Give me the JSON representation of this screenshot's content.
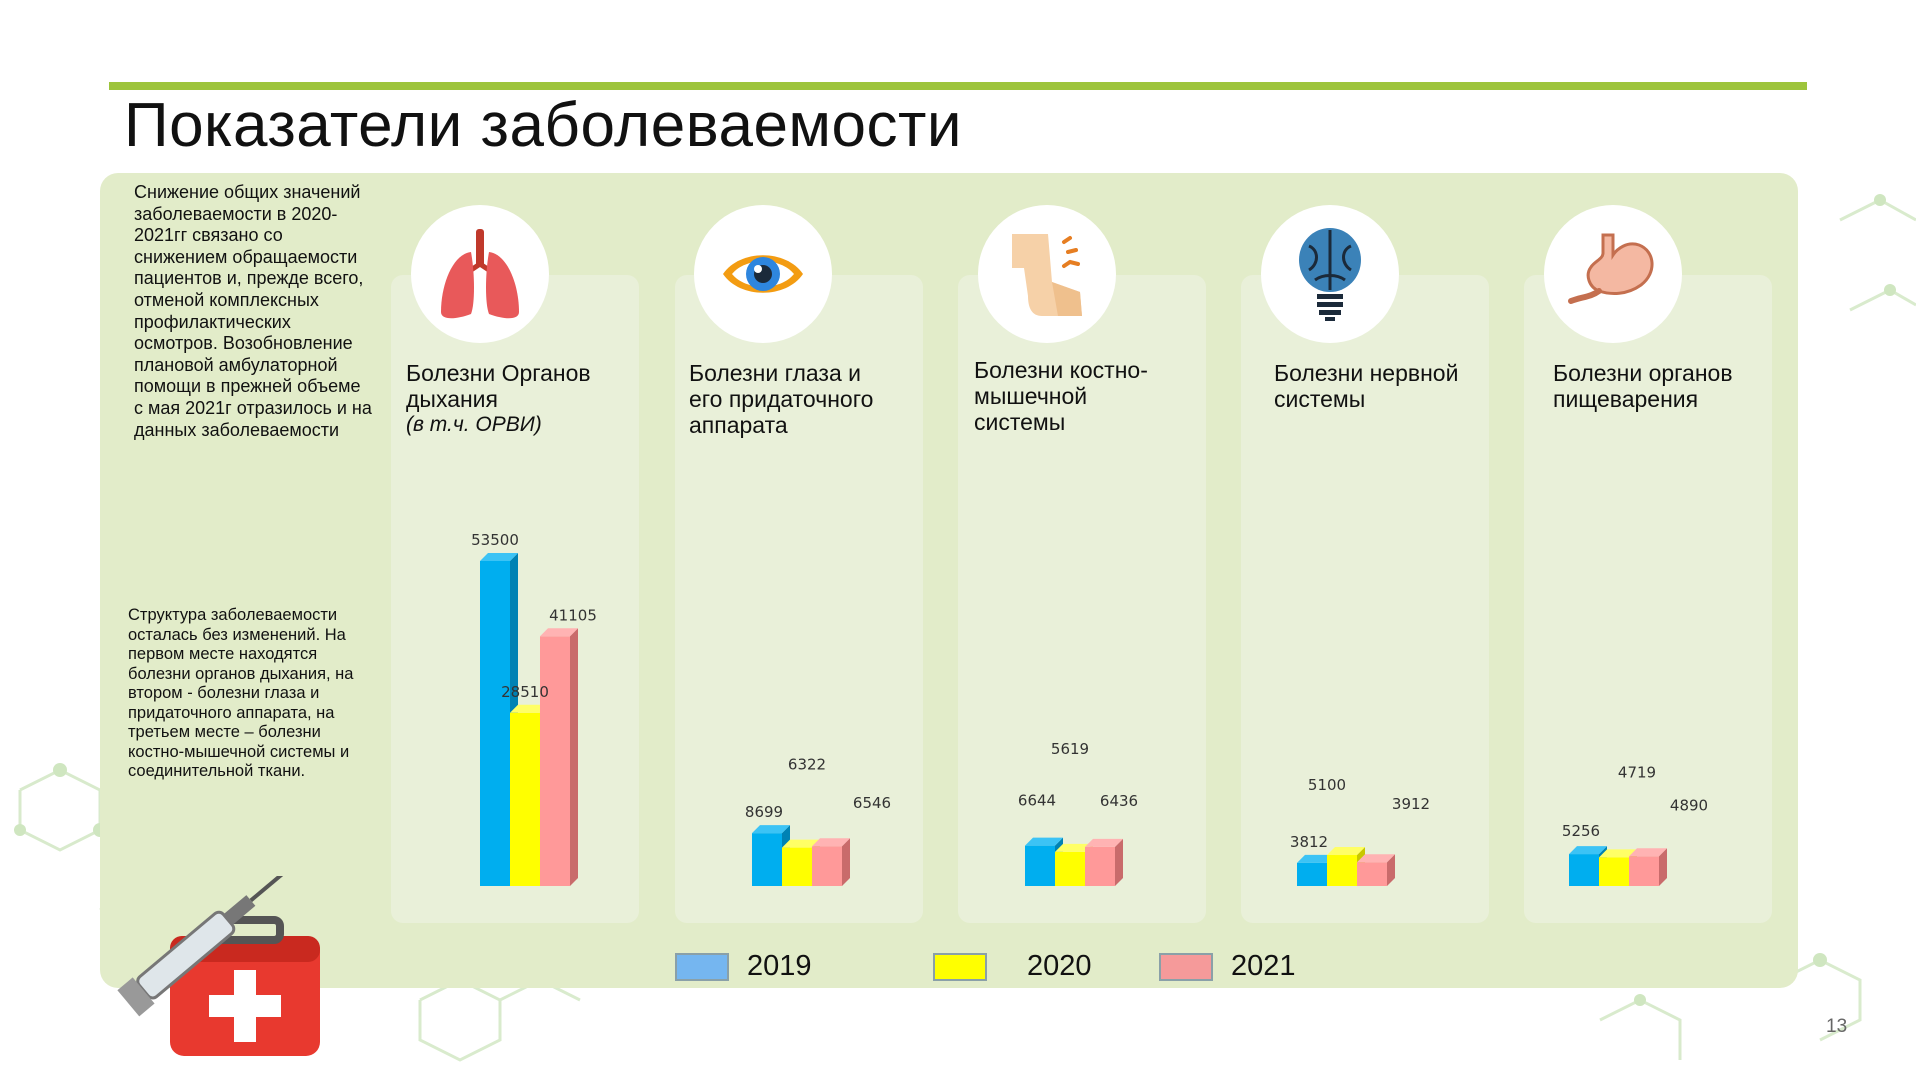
{
  "title": "Показатели заболеваемости",
  "side_text_1": "Снижение общих значений заболеваемости в 2020-2021гг связано со снижением обращаемости пациентов и, прежде всего, отменой комплексных профилактических осмотров. Возобновление плановой амбулаторной помощи в прежней объеме с мая 2021г отразилось и на данных заболеваемости",
  "side_text_2": "Структура заболеваемости осталась без изменений. На первом месте находятся болезни органов дыхания, на втором - болезни глаза и придаточного аппарата, на третьем месте – болезни костно-мышечной системы и соединительной ткани.",
  "categories": [
    {
      "label": "Болезни Органов дыхания",
      "sub": "(в т.ч. ОРВИ)",
      "icon": "lungs-icon"
    },
    {
      "label": "Болезни глаза и его придаточного аппарата",
      "sub": "",
      "icon": "eye-icon"
    },
    {
      "label": "Болезни костно-мышечной системы",
      "sub": "",
      "icon": "joint-pain-icon"
    },
    {
      "label": "Болезни нервной системы",
      "sub": "",
      "icon": "brain-bulb-icon"
    },
    {
      "label": "Болезни органов пищеварения",
      "sub": "",
      "icon": "stomach-icon"
    }
  ],
  "legend": [
    {
      "label": "2019",
      "color": "#00aeef"
    },
    {
      "label": "2020",
      "color": "#ffff00"
    },
    {
      "label": "2021",
      "color": "#ff9999"
    }
  ],
  "page_number": "13",
  "chart_data": {
    "type": "bar",
    "categories": [
      "Болезни Органов дыхания",
      "Болезни глаза и его придаточного аппарата",
      "Болезни костно-мышечной системы",
      "Болезни нервной системы",
      "Болезни органов пищеварения"
    ],
    "series": [
      {
        "name": "2019",
        "values": [
          53500,
          8699,
          6644,
          3812,
          5256
        ],
        "color": "#00aeef"
      },
      {
        "name": "2020",
        "values": [
          28510,
          6322,
          5619,
          5100,
          4719
        ],
        "color": "#ffff00"
      },
      {
        "name": "2021",
        "values": [
          41105,
          6546,
          6436,
          3912,
          4890
        ],
        "color": "#ff9999"
      }
    ],
    "data_labels": [
      [
        "53500",
        "28510",
        "41105"
      ],
      [
        "8699",
        "6322",
        "6546"
      ],
      [
        "6644",
        "5619",
        "6436"
      ],
      [
        "3812",
        "5100",
        "3912"
      ],
      [
        "5256",
        "4719",
        "4890"
      ]
    ],
    "legend": "bottom",
    "grid": false
  }
}
